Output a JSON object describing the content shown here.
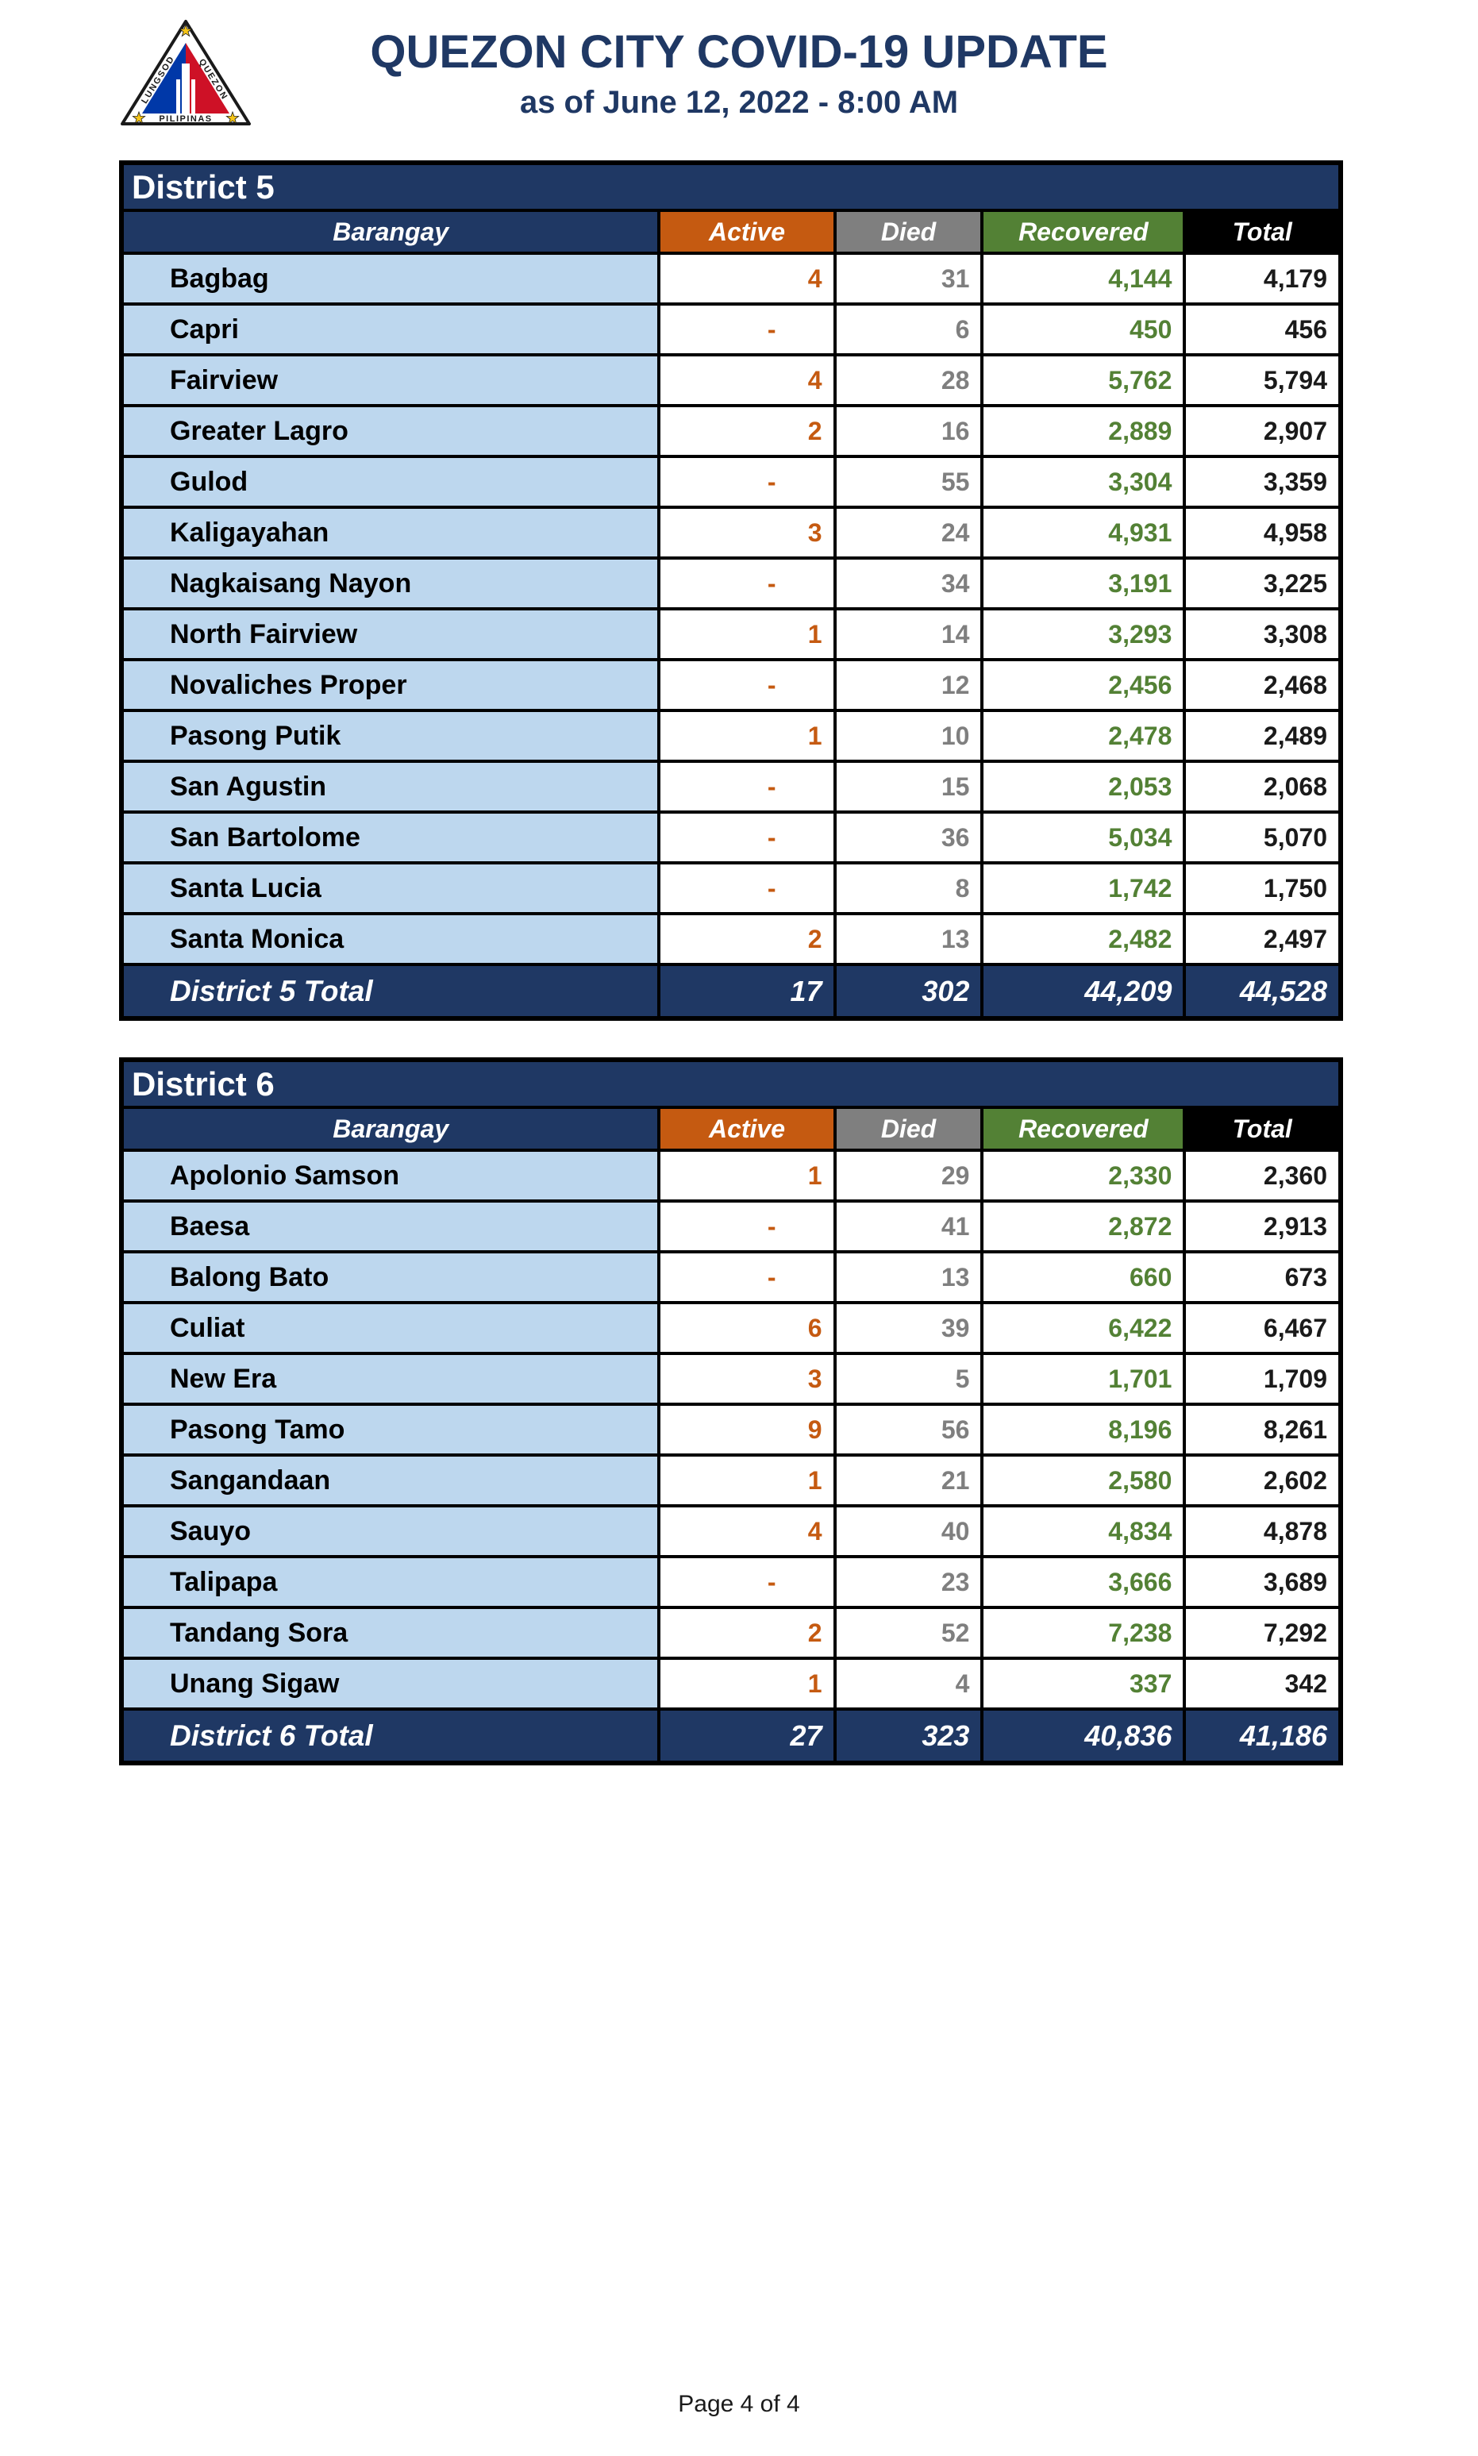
{
  "header": {
    "title": "QUEZON CITY COVID-19 UPDATE",
    "subtitle": "as of June 12, 2022 - 8:00 AM",
    "logo": {
      "left_text": "LUNGSOD",
      "right_text": "QUEZON",
      "bottom_text": "PILIPINAS"
    }
  },
  "columns": [
    "Barangay",
    "Active",
    "Died",
    "Recovered",
    "Total"
  ],
  "tables": [
    {
      "district": "District 5",
      "rows": [
        {
          "barangay": "Bagbag",
          "active": "4",
          "died": "31",
          "recovered": "4,144",
          "total": "4,179"
        },
        {
          "barangay": "Capri",
          "active": "-",
          "died": "6",
          "recovered": "450",
          "total": "456"
        },
        {
          "barangay": "Fairview",
          "active": "4",
          "died": "28",
          "recovered": "5,762",
          "total": "5,794"
        },
        {
          "barangay": "Greater Lagro",
          "active": "2",
          "died": "16",
          "recovered": "2,889",
          "total": "2,907"
        },
        {
          "barangay": "Gulod",
          "active": "-",
          "died": "55",
          "recovered": "3,304",
          "total": "3,359"
        },
        {
          "barangay": "Kaligayahan",
          "active": "3",
          "died": "24",
          "recovered": "4,931",
          "total": "4,958"
        },
        {
          "barangay": "Nagkaisang Nayon",
          "active": "-",
          "died": "34",
          "recovered": "3,191",
          "total": "3,225"
        },
        {
          "barangay": "North Fairview",
          "active": "1",
          "died": "14",
          "recovered": "3,293",
          "total": "3,308"
        },
        {
          "barangay": "Novaliches Proper",
          "active": "-",
          "died": "12",
          "recovered": "2,456",
          "total": "2,468"
        },
        {
          "barangay": "Pasong Putik",
          "active": "1",
          "died": "10",
          "recovered": "2,478",
          "total": "2,489"
        },
        {
          "barangay": "San Agustin",
          "active": "-",
          "died": "15",
          "recovered": "2,053",
          "total": "2,068"
        },
        {
          "barangay": "San Bartolome",
          "active": "-",
          "died": "36",
          "recovered": "5,034",
          "total": "5,070"
        },
        {
          "barangay": "Santa Lucia",
          "active": "-",
          "died": "8",
          "recovered": "1,742",
          "total": "1,750"
        },
        {
          "barangay": "Santa Monica",
          "active": "2",
          "died": "13",
          "recovered": "2,482",
          "total": "2,497"
        }
      ],
      "total": {
        "label": "District 5 Total",
        "active": "17",
        "died": "302",
        "recovered": "44,209",
        "total": "44,528"
      }
    },
    {
      "district": "District 6",
      "rows": [
        {
          "barangay": "Apolonio Samson",
          "active": "1",
          "died": "29",
          "recovered": "2,330",
          "total": "2,360"
        },
        {
          "barangay": "Baesa",
          "active": "-",
          "died": "41",
          "recovered": "2,872",
          "total": "2,913"
        },
        {
          "barangay": "Balong Bato",
          "active": "-",
          "died": "13",
          "recovered": "660",
          "total": "673"
        },
        {
          "barangay": "Culiat",
          "active": "6",
          "died": "39",
          "recovered": "6,422",
          "total": "6,467"
        },
        {
          "barangay": "New Era",
          "active": "3",
          "died": "5",
          "recovered": "1,701",
          "total": "1,709"
        },
        {
          "barangay": "Pasong Tamo",
          "active": "9",
          "died": "56",
          "recovered": "8,196",
          "total": "8,261"
        },
        {
          "barangay": "Sangandaan",
          "active": "1",
          "died": "21",
          "recovered": "2,580",
          "total": "2,602"
        },
        {
          "barangay": "Sauyo",
          "active": "4",
          "died": "40",
          "recovered": "4,834",
          "total": "4,878"
        },
        {
          "barangay": "Talipapa",
          "active": "-",
          "died": "23",
          "recovered": "3,666",
          "total": "3,689"
        },
        {
          "barangay": "Tandang Sora",
          "active": "2",
          "died": "52",
          "recovered": "7,238",
          "total": "7,292"
        },
        {
          "barangay": "Unang Sigaw",
          "active": "1",
          "died": "4",
          "recovered": "337",
          "total": "342"
        }
      ],
      "total": {
        "label": "District 6 Total",
        "active": "27",
        "died": "323",
        "recovered": "40,836",
        "total": "41,186"
      }
    }
  ],
  "footer": {
    "page_label": "Page 4 of 4"
  },
  "colors": {
    "navy": "#1F3864",
    "active_orange": "#C55A11",
    "died_gray": "#7F7F7F",
    "recovered_green": "#538135",
    "total_black": "#000000",
    "row_light_blue": "#BDD7EE",
    "logo_blue": "#0038A8",
    "logo_red": "#CE1126",
    "logo_star_yellow": "#F5C518"
  }
}
